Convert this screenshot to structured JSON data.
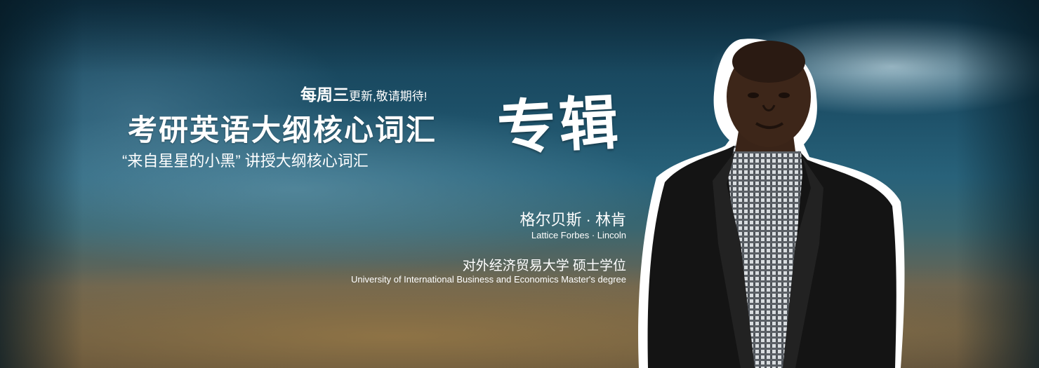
{
  "banner": {
    "schedule_bold": "每周三",
    "schedule_rest": "更新,敬请期待!",
    "title": "考研英语大纲核心词汇",
    "title_accent": "专辑",
    "subtitle": "“来自星星的小黑” 讲授大纲核心词汇",
    "teacher_name_cn": "格尔贝斯 · 林肯",
    "teacher_name_en": "Lattice Forbes · Lincoln",
    "school_cn": "对外经济贸易大学 硕士学位",
    "school_en": "University of International Business and Economics Master's degree"
  },
  "colors": {
    "text": "#ffffff",
    "background_top": "#123a4f",
    "background_bottom": "#5a4c38"
  },
  "icons": [
    "teacher-portrait"
  ]
}
